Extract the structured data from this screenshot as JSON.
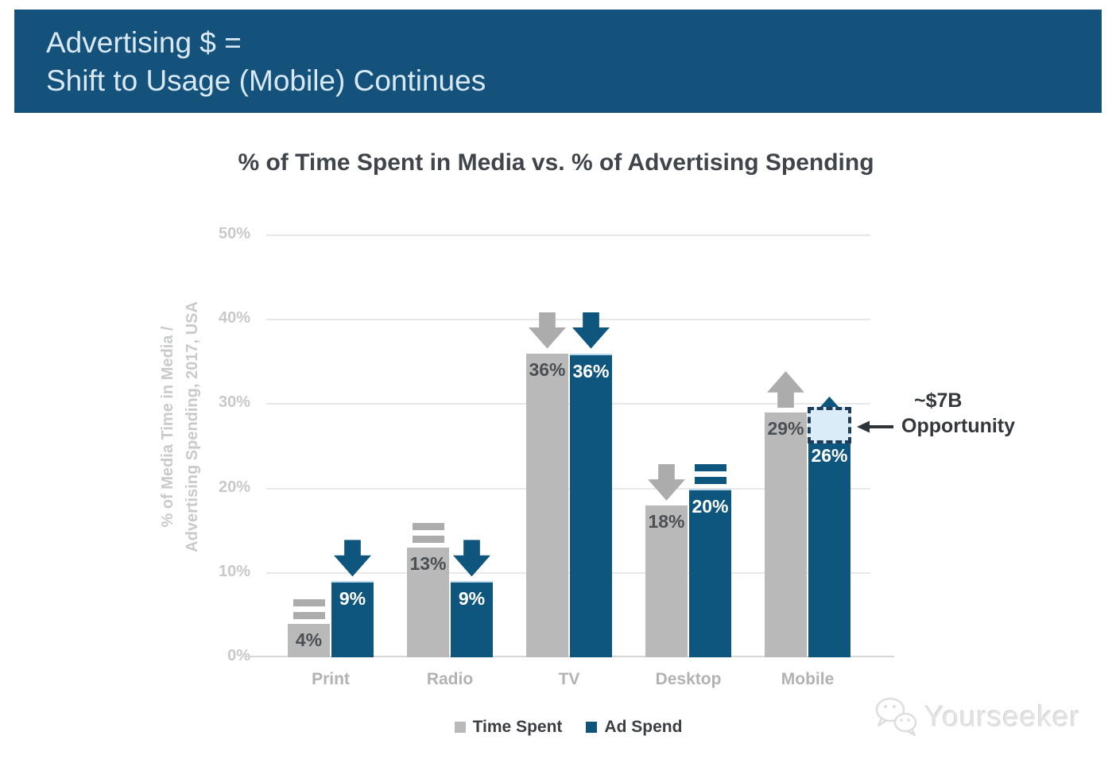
{
  "header": {
    "line1": "Advertising $ =",
    "line2": "Shift to Usage (Mobile) Continues",
    "background_color": "#14527b",
    "text_color": "#d9e9f4"
  },
  "title": "% of Time Spent in Media vs. % of Advertising Spending",
  "y_axis_label": {
    "line1": "% of Media Time in Media /",
    "line2": "Advertising Spending, 2017, USA"
  },
  "legend": [
    {
      "label": "Time Spent",
      "color": "#b9b9b9"
    },
    {
      "label": "Ad Spend",
      "color": "#0f567e"
    }
  ],
  "annotation": {
    "line1": "~$7B",
    "line2": "Opportunity"
  },
  "watermark": "Yourseeker",
  "chart_data": {
    "type": "bar",
    "title": "% of Time Spent in Media vs. % of Advertising Spending",
    "categories": [
      "Print",
      "Radio",
      "TV",
      "Desktop",
      "Mobile"
    ],
    "series": [
      {
        "name": "Time Spent",
        "color": "#b9b9b9",
        "icon_color": "#acacac",
        "values": [
          4,
          13,
          36,
          18,
          29
        ],
        "trend_icons": [
          "equal",
          "equal",
          "down",
          "down",
          "up"
        ]
      },
      {
        "name": "Ad Spend",
        "color": "#0f567e",
        "icon_color": "#0f567e",
        "values": [
          9,
          9,
          36,
          20,
          26
        ],
        "trend_icons": [
          "down",
          "down",
          "down",
          "equal",
          "up"
        ]
      }
    ],
    "xlabel": "",
    "ylabel": "% of Media Time in Media / Advertising Spending, 2017, USA",
    "ylim": [
      0,
      50
    ],
    "yticks": [
      0,
      10,
      20,
      30,
      40,
      50
    ],
    "ytick_format": "{v}%",
    "value_label_format": "{v}%",
    "grid": true,
    "legend_position": "bottom",
    "annotation_box": {
      "category": "Mobile",
      "series": "Ad Spend",
      "from_pct": 26,
      "to_pct": 29,
      "fill": "#daecf7",
      "border": "#1d3d5b",
      "label": "~$7B Opportunity"
    }
  }
}
